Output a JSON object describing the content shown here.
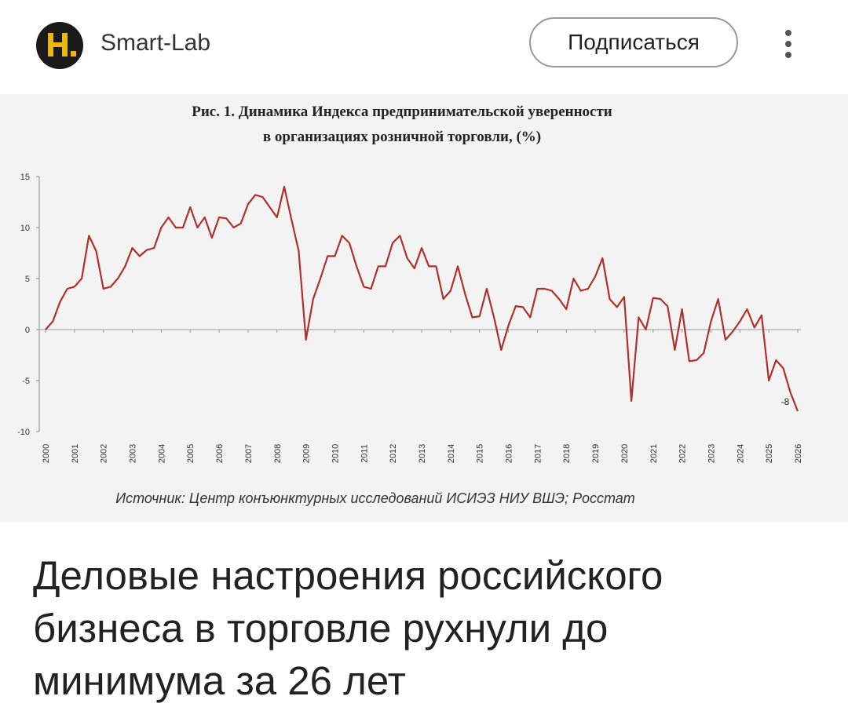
{
  "header": {
    "source": "Smart-Lab",
    "button": "Подписаться"
  },
  "chart_data": {
    "type": "line",
    "title": [
      "Рис. 1. Динамика Индекса предпринимательской уверенности",
      "в организациях розничной торговли, (%)"
    ],
    "source_note": "Источник: Центр конъюнктурных исследований ИСИЭЗ НИУ ВШЭ; Росстат",
    "annotation": "-8",
    "x": [
      2000,
      2000.25,
      2000.5,
      2000.75,
      2001,
      2001.25,
      2001.5,
      2001.75,
      2002,
      2002.25,
      2002.5,
      2002.75,
      2003,
      2003.25,
      2003.5,
      2003.75,
      2004,
      2004.25,
      2004.5,
      2004.75,
      2005,
      2005.25,
      2005.5,
      2005.75,
      2006,
      2006.25,
      2006.5,
      2006.75,
      2007,
      2007.25,
      2007.5,
      2007.75,
      2008,
      2008.25,
      2008.5,
      2008.75,
      2009,
      2009.25,
      2009.5,
      2009.75,
      2010,
      2010.25,
      2010.5,
      2010.75,
      2011,
      2011.25,
      2011.5,
      2011.75,
      2012,
      2012.25,
      2012.5,
      2012.75,
      2013,
      2013.25,
      2013.5,
      2013.75,
      2014,
      2014.25,
      2014.5,
      2014.75,
      2015,
      2015.25,
      2015.5,
      2015.75,
      2016,
      2016.25,
      2016.5,
      2016.75,
      2017,
      2017.25,
      2017.5,
      2017.75,
      2018,
      2018.25,
      2018.5,
      2018.75,
      2019,
      2019.25,
      2019.5,
      2019.75,
      2020,
      2020.25,
      2020.5,
      2020.75,
      2021,
      2021.25,
      2021.5,
      2021.75,
      2022,
      2022.25,
      2022.5,
      2022.75,
      2023,
      2023.25,
      2023.5,
      2023.75,
      2024,
      2024.25,
      2024.5,
      2024.75,
      2025,
      2025.25,
      2025.5,
      2025.75,
      2026
    ],
    "series": [
      {
        "color": "#b0302c",
        "values": [
          0,
          0.8,
          2.7,
          4,
          4.2,
          5,
          9.2,
          7.7,
          4,
          4.2,
          5,
          6.2,
          8,
          7.2,
          7.8,
          8,
          10,
          11,
          10,
          10,
          12,
          10,
          11,
          9,
          11,
          10.9,
          10,
          10.4,
          12.3,
          13.2,
          13,
          12,
          11,
          14,
          10.8,
          7.7,
          -1,
          3,
          5,
          7.2,
          7.2,
          9.2,
          8.5,
          6.2,
          4.2,
          4,
          6.2,
          6.2,
          8.5,
          9.2,
          7,
          6,
          8,
          6.2,
          6.2,
          3,
          3.8,
          6.2,
          3.5,
          1.2,
          1.3,
          4,
          1.2,
          -2,
          0.4,
          2.3,
          2.2,
          1.2,
          4,
          4,
          3.8,
          3,
          2,
          5,
          3.8,
          4,
          5.2,
          7,
          3,
          2.2,
          3.2,
          -7,
          1.2,
          0,
          3.1,
          3,
          2.3,
          -2,
          2,
          -3.1,
          -3,
          -2.3,
          0.8,
          3,
          -1,
          -0.2,
          0.8,
          2,
          0.2,
          1.4,
          -5,
          -3,
          -3.8,
          -6.2,
          -8
        ]
      }
    ],
    "xlim": [
      2000,
      2026
    ],
    "xticks": [
      2000,
      2001,
      2002,
      2003,
      2004,
      2005,
      2006,
      2007,
      2008,
      2009,
      2010,
      2011,
      2012,
      2013,
      2014,
      2015,
      2016,
      2017,
      2018,
      2019,
      2020,
      2021,
      2022,
      2023,
      2024,
      2025,
      2026
    ],
    "ylim": [
      -10,
      15
    ],
    "yticks": [
      15,
      10,
      5,
      0,
      -5,
      -10
    ]
  },
  "headline": "Деловые настроения российского бизнеса в торговле рухнули до минимума за 26 лет"
}
